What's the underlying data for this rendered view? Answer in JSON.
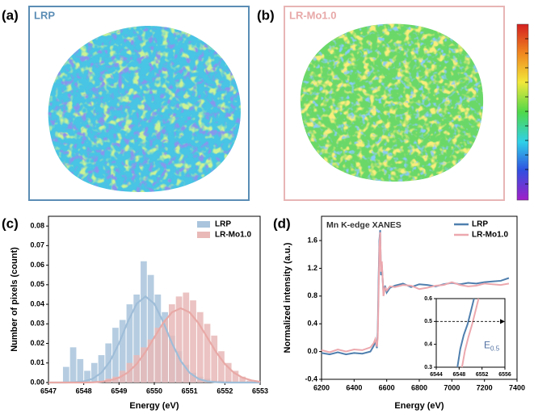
{
  "panel_labels": [
    "(a)",
    "(b)",
    "(c)",
    "(d)"
  ],
  "images": [
    {
      "label": "LRP"
    },
    {
      "label": "LR-Mo1.0"
    }
  ],
  "chart_data": [
    {
      "type": "histogram",
      "xlabel": "Energy (eV)",
      "ylabel": "Number of pixels (count)",
      "xlim": [
        6547,
        6553
      ],
      "xticks": [
        6547,
        6548,
        6549,
        6550,
        6551,
        6552,
        6553
      ],
      "ylim": [
        0,
        0.085
      ],
      "yticks": [
        {
          "value": 0,
          "label": "0.00"
        },
        {
          "value": 0.01,
          "label": "0.01"
        },
        {
          "value": 0.02,
          "label": "0.02"
        },
        {
          "value": 0.03,
          "label": "0.03"
        },
        {
          "value": 0.04,
          "label": "0.04"
        },
        {
          "value": 0.05,
          "label": "0.05"
        },
        {
          "value": 0.06,
          "label": "0.06"
        },
        {
          "value": 0.07,
          "label": "0.07"
        },
        {
          "value": 0.08,
          "label": "0.08"
        }
      ],
      "legend": "upper right",
      "series": [
        {
          "name": "LRP",
          "color": "#a9c4dc",
          "bins": [
            6547.4,
            6547.6,
            6547.8,
            6548.0,
            6548.2,
            6548.4,
            6548.6,
            6548.8,
            6549.0,
            6549.2,
            6549.4,
            6549.6,
            6549.8,
            6550.0,
            6550.2,
            6550.4,
            6550.6,
            6550.8,
            6551.0,
            6551.2,
            6551.4,
            6551.6,
            6551.8,
            6552.0,
            6552.2
          ],
          "values": [
            0.008,
            0.018,
            0.012,
            0.006,
            0.01,
            0.014,
            0.02,
            0.028,
            0.032,
            0.04,
            0.045,
            0.062,
            0.055,
            0.045,
            0.036,
            0.024,
            0.016,
            0.009,
            0.005,
            0.003,
            0.002,
            0.001,
            0.001,
            0.001
          ]
        },
        {
          "name": "LR-Mo1.0",
          "color": "#e8b9b7",
          "bins": [
            6548.6,
            6548.8,
            6549.0,
            6549.2,
            6549.4,
            6549.6,
            6549.8,
            6550.0,
            6550.2,
            6550.4,
            6550.6,
            6550.8,
            6551.0,
            6551.2,
            6551.4,
            6551.6,
            6551.8,
            6552.0,
            6552.2,
            6552.4,
            6552.6,
            6552.8
          ],
          "values": [
            0.002,
            0.003,
            0.006,
            0.01,
            0.014,
            0.018,
            0.022,
            0.028,
            0.032,
            0.04,
            0.044,
            0.046,
            0.042,
            0.036,
            0.03,
            0.024,
            0.016,
            0.01,
            0.006,
            0.003,
            0.001
          ]
        }
      ],
      "fits": [
        {
          "color": "#9fbdd8",
          "x": [
            6547,
            6547.25,
            6547.5,
            6547.75,
            6548,
            6548.25,
            6548.5,
            6548.75,
            6549,
            6549.25,
            6549.5,
            6549.75,
            6550,
            6550.25,
            6550.5,
            6550.75,
            6551,
            6551.25,
            6551.5,
            6551.75,
            6552,
            6552.25,
            6552.5,
            6552.75,
            6553
          ],
          "values": [
            0,
            0,
            0,
            0.0002,
            0.0006,
            0.0019,
            0.005,
            0.011,
            0.0201,
            0.0311,
            0.0403,
            0.044,
            0.0403,
            0.0311,
            0.0201,
            0.011,
            0.005,
            0.0019,
            0.0006,
            0.0002,
            0,
            0,
            0,
            0,
            0
          ]
        },
        {
          "color": "#e8a9a6",
          "x": [
            6547,
            6547.25,
            6547.5,
            6547.75,
            6548,
            6548.25,
            6548.5,
            6548.75,
            6549,
            6549.25,
            6549.5,
            6549.75,
            6550,
            6550.25,
            6550.5,
            6550.75,
            6551,
            6551.25,
            6551.5,
            6551.75,
            6552,
            6552.25,
            6552.5,
            6552.75,
            6553
          ],
          "values": [
            0,
            0,
            0,
            0,
            0,
            0.0001,
            0.0004,
            0.0011,
            0.0025,
            0.0051,
            0.0095,
            0.0156,
            0.0231,
            0.0304,
            0.0359,
            0.038,
            0.0359,
            0.0304,
            0.0231,
            0.0156,
            0.0095,
            0.0051,
            0.0025,
            0.0011,
            0.0004
          ]
        }
      ]
    },
    {
      "type": "line",
      "annotation": "Mn K-edge XANES",
      "xlabel": "Energy (eV)",
      "ylabel": "Normalized intensity (a.u.)",
      "xlim": [
        6200,
        7400
      ],
      "xticks": [
        6200,
        6400,
        6600,
        6800,
        7000,
        7200,
        7400
      ],
      "ylim": [
        -0.4,
        1.95
      ],
      "yticks": [
        -0.4,
        {
          "value": 0,
          "label": "0.0"
        },
        0.4,
        0.8,
        1.2,
        1.6
      ],
      "legend": "upper right",
      "x": [
        6200,
        6250,
        6300,
        6350,
        6400,
        6450,
        6500,
        6520,
        6530,
        6540,
        6545,
        6550,
        6555,
        6560,
        6565,
        6570,
        6580,
        6590,
        6600,
        6620,
        6650,
        6700,
        6750,
        6800,
        6850,
        6900,
        6950,
        7000,
        7050,
        7100,
        7150,
        7200,
        7250,
        7300,
        7350
      ],
      "series": [
        {
          "name": "LRP",
          "color": "#4f7fae",
          "values": [
            -0.02,
            -0.04,
            -0.01,
            -0.04,
            -0.02,
            -0.03,
            0.0,
            0.08,
            0.15,
            0.05,
            0.3,
            1.0,
            1.6,
            1.75,
            1.1,
            1.25,
            0.85,
            0.95,
            0.85,
            0.92,
            0.95,
            0.98,
            0.93,
            0.97,
            0.96,
            0.94,
            0.97,
            0.99,
            0.97,
            0.99,
            0.98,
            1.0,
            1.01,
            1.02,
            1.06
          ]
        },
        {
          "name": "LR-Mo1.0",
          "color": "#eca8ae",
          "values": [
            0.02,
            -0.01,
            0.03,
            0.0,
            0.03,
            0.02,
            0.06,
            0.12,
            0.18,
            0.07,
            0.2,
            0.8,
            1.5,
            1.72,
            1.15,
            1.3,
            0.8,
            0.92,
            0.88,
            0.94,
            0.93,
            0.96,
            0.95,
            0.9,
            0.92,
            0.95,
            0.96,
            1.0,
            0.96,
            0.94,
            0.95,
            0.98,
            0.97,
            0.96,
            0.98
          ]
        }
      ]
    },
    {
      "type": "line",
      "xlim": [
        6544,
        6556
      ],
      "xticks": [
        6544,
        6548,
        6552,
        6556
      ],
      "ylim": [
        0.3,
        0.6
      ],
      "yticks": [
        0.3,
        0.4,
        0.5,
        0.6
      ],
      "hline": 0.5,
      "e_label": "E",
      "e_subscript": "0.5",
      "series": [
        {
          "color": "#4f7fae",
          "x": [
            6547.7,
            6548.2,
            6548.8,
            6549.5,
            6550.2,
            6550.6
          ],
          "values": [
            0.3,
            0.38,
            0.44,
            0.49,
            0.56,
            0.6
          ]
        },
        {
          "color": "#eca8ae",
          "x": [
            6548.5,
            6549.0,
            6549.6,
            6550.3,
            6551.0,
            6551.4
          ],
          "values": [
            0.3,
            0.37,
            0.43,
            0.49,
            0.56,
            0.6
          ]
        }
      ]
    }
  ]
}
